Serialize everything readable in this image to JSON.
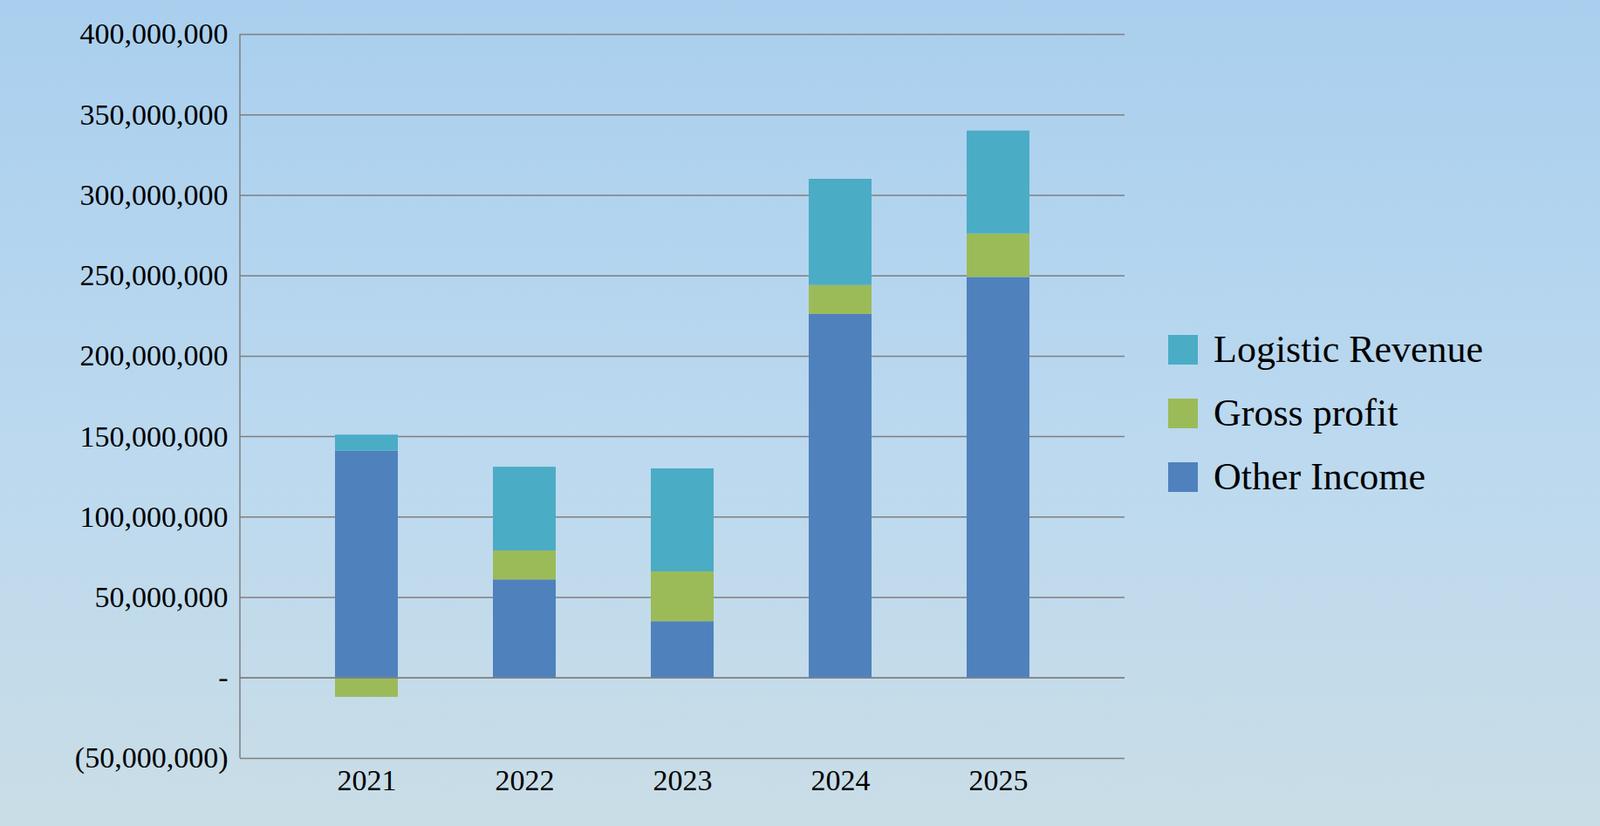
{
  "chart_data": {
    "type": "bar",
    "stacked": true,
    "categories": [
      "2021",
      "2022",
      "2023",
      "2024",
      "2025"
    ],
    "series": [
      {
        "name": "Other Income",
        "color": "#4f81bd",
        "values": [
          141000000,
          61000000,
          35000000,
          226000000,
          249000000
        ]
      },
      {
        "name": "Gross profit",
        "color": "#9bbb59",
        "values": [
          -12000000,
          18000000,
          31000000,
          18000000,
          27000000
        ]
      },
      {
        "name": "Logistic Revenue",
        "color": "#4bacc6",
        "values": [
          10000000,
          52000000,
          64000000,
          66000000,
          64000000
        ]
      }
    ],
    "ylim": [
      -50000000,
      400000000
    ],
    "yticks": [
      {
        "value": -50000000,
        "label": "(50,000,000)"
      },
      {
        "value": 0,
        "label": "-"
      },
      {
        "value": 50000000,
        "label": "50,000,000"
      },
      {
        "value": 100000000,
        "label": "100,000,000"
      },
      {
        "value": 150000000,
        "label": "150,000,000"
      },
      {
        "value": 200000000,
        "label": "200,000,000"
      },
      {
        "value": 250000000,
        "label": "250,000,000"
      },
      {
        "value": 300000000,
        "label": "300,000,000"
      },
      {
        "value": 350000000,
        "label": "350,000,000"
      },
      {
        "value": 400000000,
        "label": "400,000,000"
      }
    ],
    "grid": true,
    "legend": "right"
  }
}
